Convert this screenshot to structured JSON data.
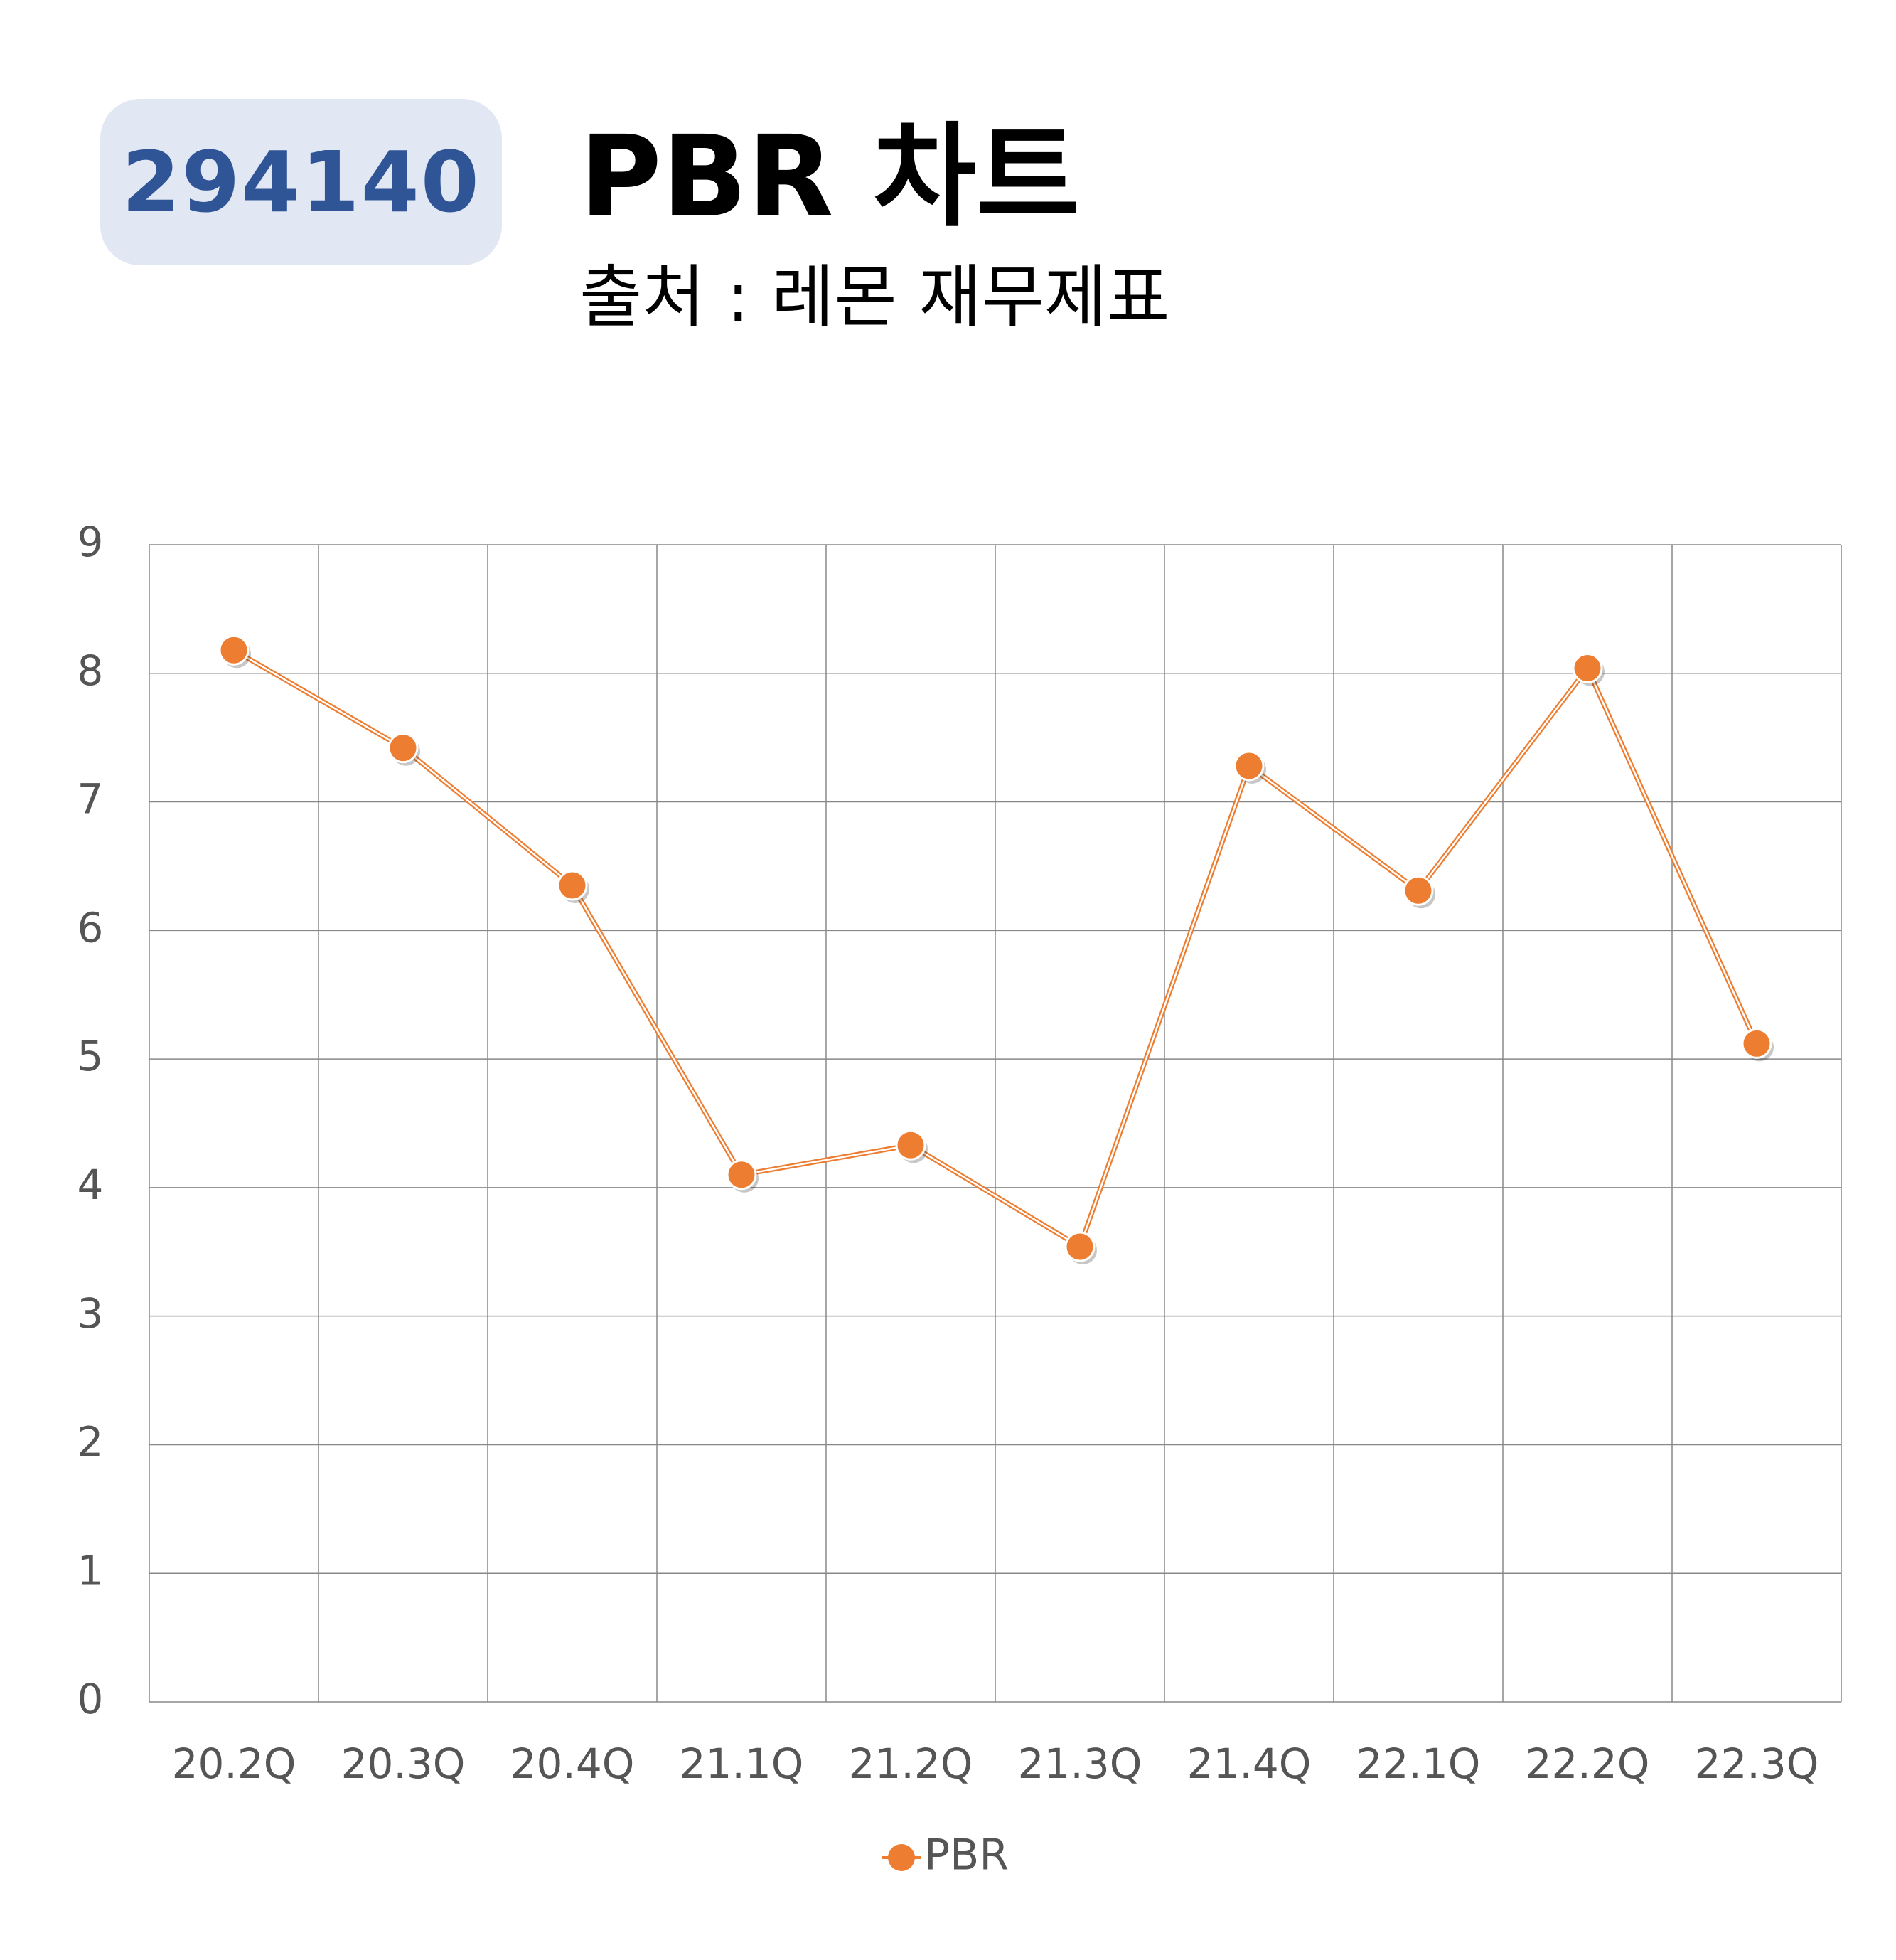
{
  "header": {
    "code": "294140",
    "title": "PBR 차트",
    "subtitle": "출처 : 레몬 재무제표"
  },
  "colors": {
    "badge_bg": "#e2e7f4",
    "badge_text": "#2f5597",
    "series": "#ed7d31",
    "grid": "#888888"
  },
  "chart_data": {
    "type": "line",
    "categories": [
      "20.2Q",
      "20.3Q",
      "20.4Q",
      "21.1Q",
      "21.2Q",
      "21.3Q",
      "21.4Q",
      "22.1Q",
      "22.2Q",
      "22.3Q"
    ],
    "series": [
      {
        "name": "PBR",
        "values": [
          8.18,
          7.42,
          6.35,
          4.1,
          4.33,
          3.54,
          7.28,
          6.31,
          8.04,
          5.12
        ],
        "color": "#ed7d31"
      }
    ],
    "ylim": [
      0,
      9
    ],
    "yticks": [
      0,
      1,
      2,
      3,
      4,
      5,
      6,
      7,
      8,
      9
    ],
    "grid": true,
    "legend": "bottom-center",
    "markers": "circle"
  }
}
